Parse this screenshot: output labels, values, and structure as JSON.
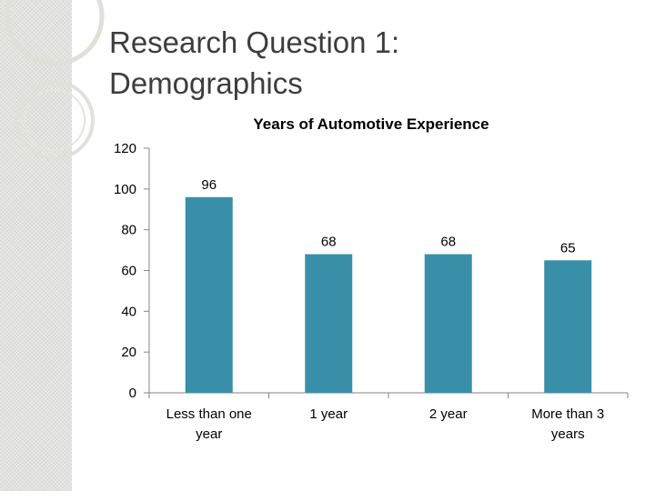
{
  "slide": {
    "title_line1": "Research Question 1:",
    "title_line2": "Demographics"
  },
  "colors": {
    "bar": "#3a8fa8",
    "axis": "#868686",
    "title_text": "#3d3d3d",
    "deco_ring": "#dfe0d8"
  },
  "chart_data": {
    "type": "bar",
    "title": "Years of Automotive Experience",
    "categories": [
      [
        "Less than one",
        "year"
      ],
      [
        "1 year"
      ],
      [
        "2 year"
      ],
      [
        "More than 3",
        "years"
      ]
    ],
    "values": [
      96,
      68,
      68,
      65
    ],
    "data_labels": [
      "96",
      "68",
      "68",
      "65"
    ],
    "ylim": [
      0,
      120
    ],
    "yticks": [
      0,
      20,
      40,
      60,
      80,
      100,
      120
    ],
    "xlabel": "",
    "ylabel": "",
    "grid": false,
    "legend": "none"
  }
}
